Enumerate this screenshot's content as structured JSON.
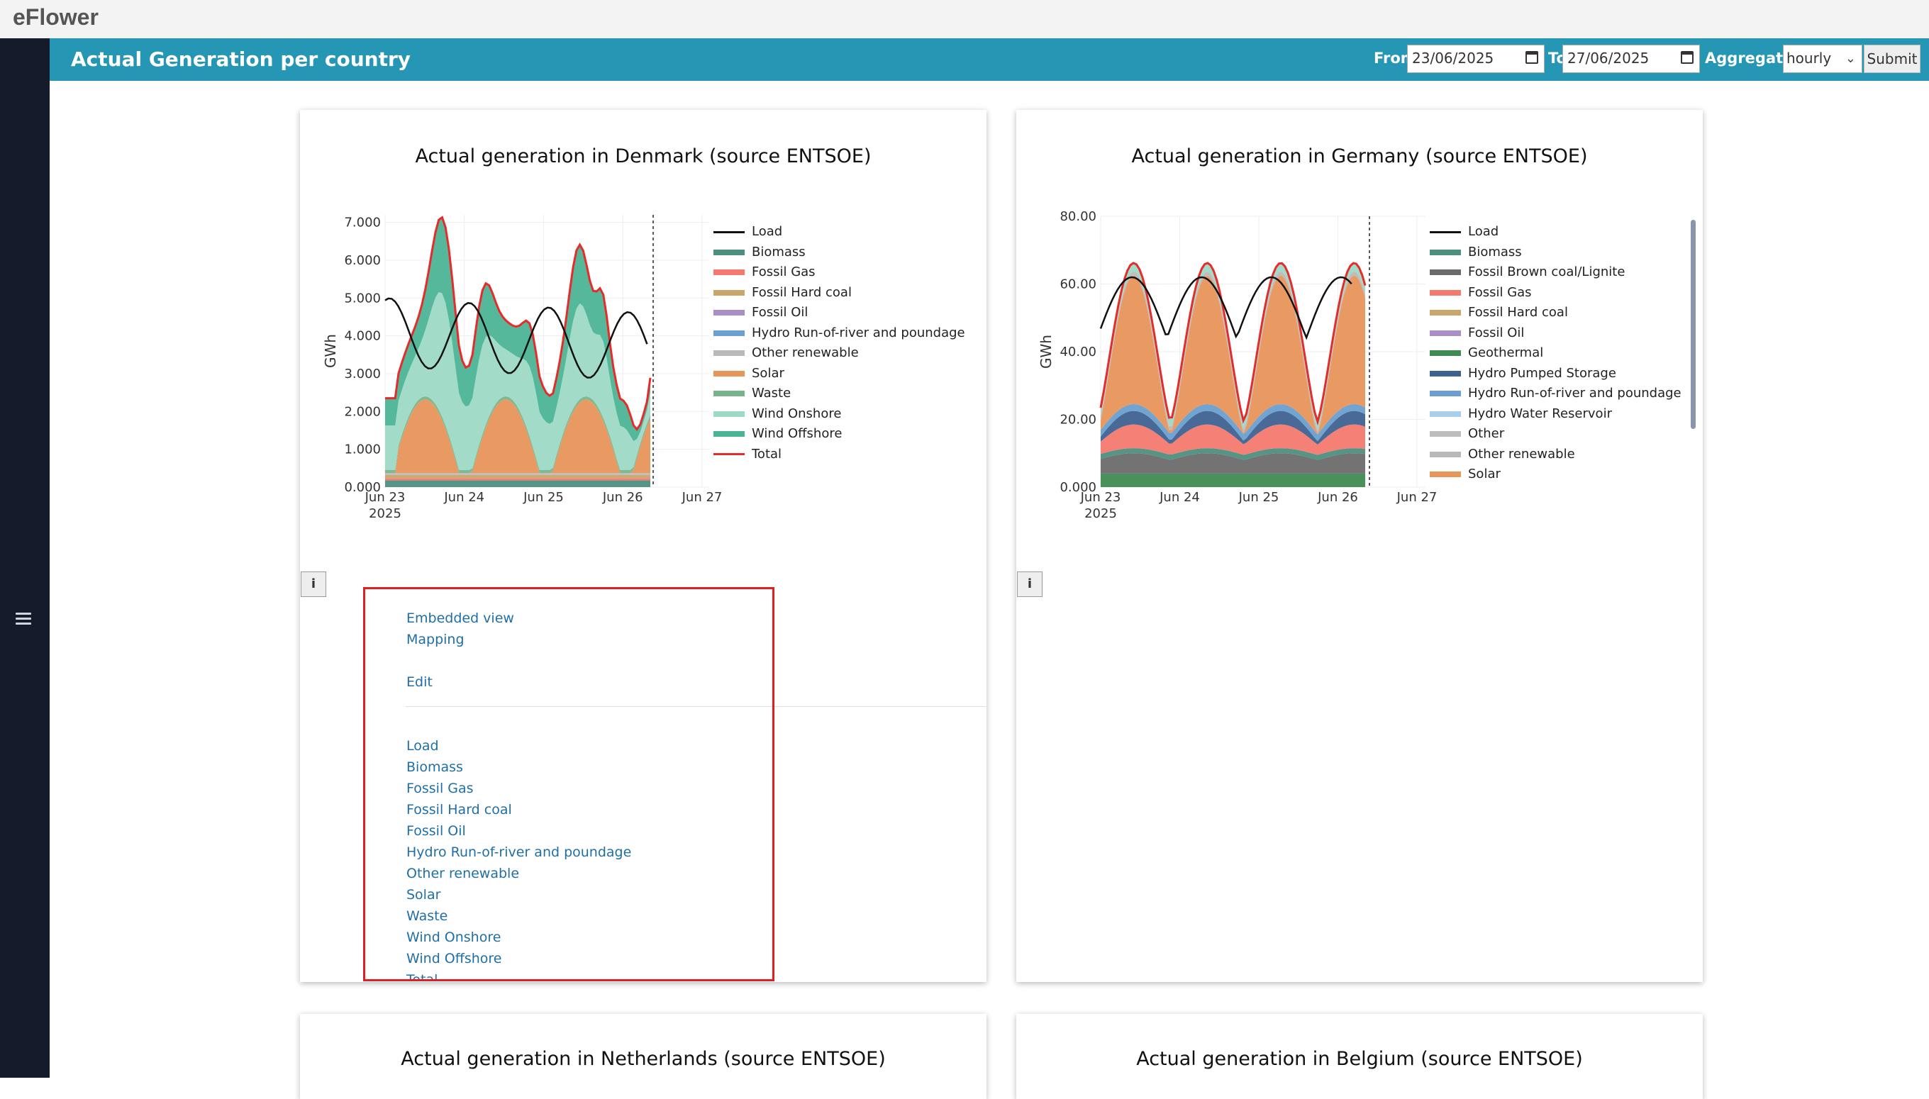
{
  "app": {
    "title": "eFlower"
  },
  "header": {
    "title": "Actual Generation per country",
    "from_label": "From",
    "from_value": "23/06/2025",
    "to_label": "To",
    "to_value": "27/06/2025",
    "aggregation_label": "Aggregation",
    "aggregation_value": "hourly",
    "submit_label": "Submit"
  },
  "icons": {
    "menu": "menu-icon",
    "calendar": "calendar-icon",
    "info": "info-icon",
    "chevron": "chevron-down-icon"
  },
  "info_label": "i",
  "cards": {
    "denmark": {
      "title": "Actual generation in Denmark (source ENTSOE)"
    },
    "germany": {
      "title": "Actual generation in Germany (source ENTSOE)"
    },
    "netherlands": {
      "title": "Actual generation in Netherlands (source ENTSOE)"
    },
    "belgium": {
      "title": "Actual generation in Belgium (source ENTSOE)"
    }
  },
  "menu_panel": {
    "top_links": [
      "Embedded view",
      "Mapping",
      "Edit"
    ],
    "series_links": [
      "Load",
      "Biomass",
      "Fossil Gas",
      "Fossil Hard coal",
      "Fossil Oil",
      "Hydro Run-of-river and poundage",
      "Other renewable",
      "Solar",
      "Waste",
      "Wind Onshore",
      "Wind Offshore",
      "Total"
    ]
  },
  "chart_data": [
    {
      "type": "area",
      "title": "Actual generation in Denmark (source ENTSOE)",
      "xlabel": "",
      "ylabel": "GWh",
      "x_ticks": [
        "Jun 23\n2025",
        "Jun 24",
        "Jun 25",
        "Jun 26",
        "Jun 27"
      ],
      "y_ticks": [
        "0.000",
        "1.000",
        "2.000",
        "3.000",
        "4.000",
        "5.000",
        "6.000",
        "7.000"
      ],
      "ylim": [
        0,
        7.2
      ],
      "legend_position": "right",
      "colors": {
        "Load": "#111111",
        "Biomass": "#4d8f7e",
        "Fossil Gas": "#f47a6f",
        "Fossil Hard coal": "#c9a66b",
        "Fossil Oil": "#a98fc6",
        "Hydro Run-of-river and poundage": "#6a9fd0",
        "Other renewable": "#b9b9b9",
        "Solar": "#e8955a",
        "Waste": "#78b48b",
        "Wind Onshore": "#9dd9c5",
        "Wind Offshore": "#4cb495",
        "Total": "#e62b2b"
      },
      "series": [
        {
          "name": "Load"
        },
        {
          "name": "Biomass"
        },
        {
          "name": "Fossil Gas"
        },
        {
          "name": "Fossil Hard coal"
        },
        {
          "name": "Fossil Oil"
        },
        {
          "name": "Hydro Run-of-river and poundage"
        },
        {
          "name": "Other renewable"
        },
        {
          "name": "Solar"
        },
        {
          "name": "Waste"
        },
        {
          "name": "Wind Onshore"
        },
        {
          "name": "Wind Offshore"
        },
        {
          "name": "Total"
        }
      ]
    },
    {
      "type": "area",
      "title": "Actual generation in Germany (source ENTSOE)",
      "xlabel": "",
      "ylabel": "GWh",
      "x_ticks": [
        "Jun 23\n2025",
        "Jun 24",
        "Jun 25",
        "Jun 26",
        "Jun 27"
      ],
      "y_ticks": [
        "0.000",
        "20.00",
        "40.00",
        "60.00",
        "80.00"
      ],
      "ylim": [
        0,
        80
      ],
      "legend_position": "right",
      "colors": {
        "Load": "#111111",
        "Biomass": "#4d8f7e",
        "Fossil Brown coal/Lignite": "#6b6b6b",
        "Fossil Gas": "#f47a6f",
        "Fossil Hard coal": "#c9a66b",
        "Fossil Oil": "#a98fc6",
        "Geothermal": "#3f8a52",
        "Hydro Pumped Storage": "#3f6190",
        "Hydro Run-of-river and poundage": "#6a9fd0",
        "Hydro Water Reservoir": "#a9cdea",
        "Other": "#bdbdbd",
        "Other renewable": "#b9b9b9",
        "Solar": "#e8955a"
      },
      "series": [
        {
          "name": "Load"
        },
        {
          "name": "Biomass"
        },
        {
          "name": "Fossil Brown coal/Lignite"
        },
        {
          "name": "Fossil Gas"
        },
        {
          "name": "Fossil Hard coal"
        },
        {
          "name": "Fossil Oil"
        },
        {
          "name": "Geothermal"
        },
        {
          "name": "Hydro Pumped Storage"
        },
        {
          "name": "Hydro Run-of-river and poundage"
        },
        {
          "name": "Hydro Water Reservoir"
        },
        {
          "name": "Other"
        },
        {
          "name": "Other renewable"
        },
        {
          "name": "Solar"
        }
      ]
    }
  ]
}
